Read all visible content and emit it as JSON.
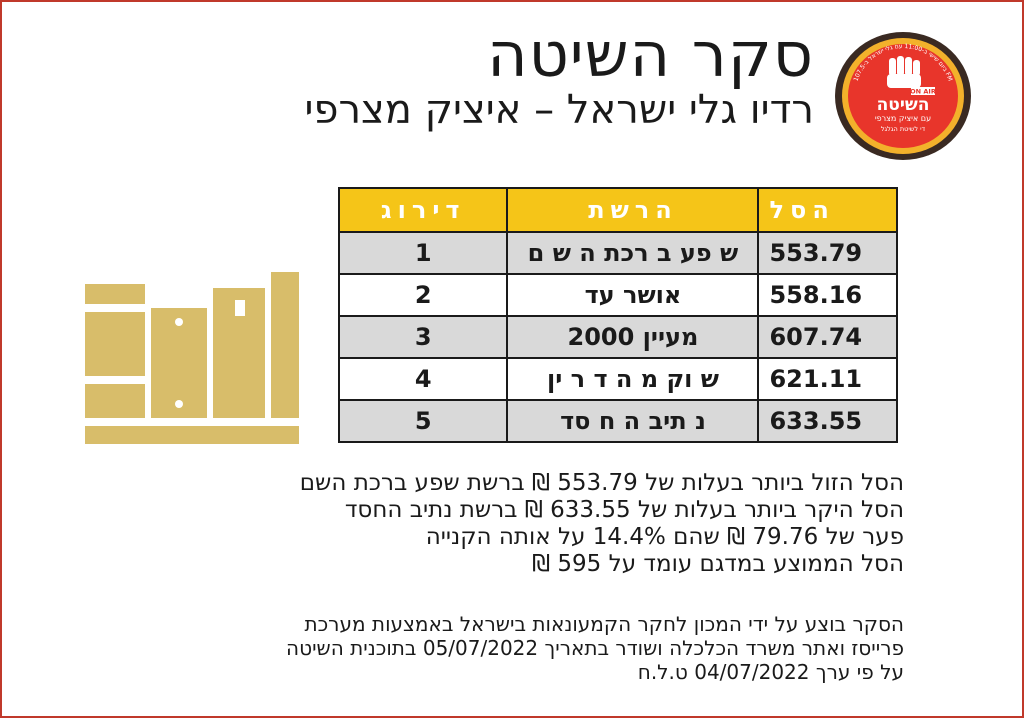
{
  "header": {
    "title": "סקר השיטה",
    "subtitle": "רדיו גלי ישראל – איציק מצרפי"
  },
  "logo": {
    "badge": "ON AIR",
    "name": "השיטה",
    "tagline": "עם איציק מצרפי",
    "ring_text": "ביום שישי ב-11:00 עם גלי ישראל ב-107.5 FM",
    "bottom_text": "די לשיטת הגלגל"
  },
  "table": {
    "headers": {
      "price": "הסל",
      "network": "הרשת",
      "rank": "דירוג"
    },
    "rows": [
      {
        "price": "553.79",
        "network": "ש פע ב רכת ה ש ם",
        "rank": "1"
      },
      {
        "price": "558.16",
        "network": "אושר עד",
        "rank": "2"
      },
      {
        "price": "607.74",
        "network": "מעיין 2000",
        "rank": "3"
      },
      {
        "price": "621.11",
        "network": "ש וק מ ה ד ר ין",
        "rank": "4"
      },
      {
        "price": "633.55",
        "network": "נ תיב ה ח סד",
        "rank": "5"
      }
    ]
  },
  "summary": [
    "הסל הזול ביותר בעלות של 553.79 ₪ ברשת שפע ברכת השם",
    "הסל היקר ביותר בעלות של 633.55 ₪ ברשת נתיב החסד",
    "פער של 79.76 ₪ שהם 14.4% על אותה הקנייה",
    "הסל הממוצע במדגם עומד על 595 ₪"
  ],
  "footnote": [
    "הסקר בוצע על ידי המכון לחקר הקמעונאות בישראל באמצעות מערכת",
    "פרייסז ואתר משרד הכלכלה ושודר בתאריך 05/07/2022 בתוכנית השיטה",
    "על פי ערך 04/07/2022 ט.ל.ח"
  ],
  "colors": {
    "header_fill": "#f5c518",
    "shaded_row": "#d9d9d9",
    "books_icon": "#d8bd6a",
    "logo_red": "#e8352b",
    "frame": "#c0392b"
  },
  "icons": [
    "logo-emblem",
    "books-icon"
  ]
}
